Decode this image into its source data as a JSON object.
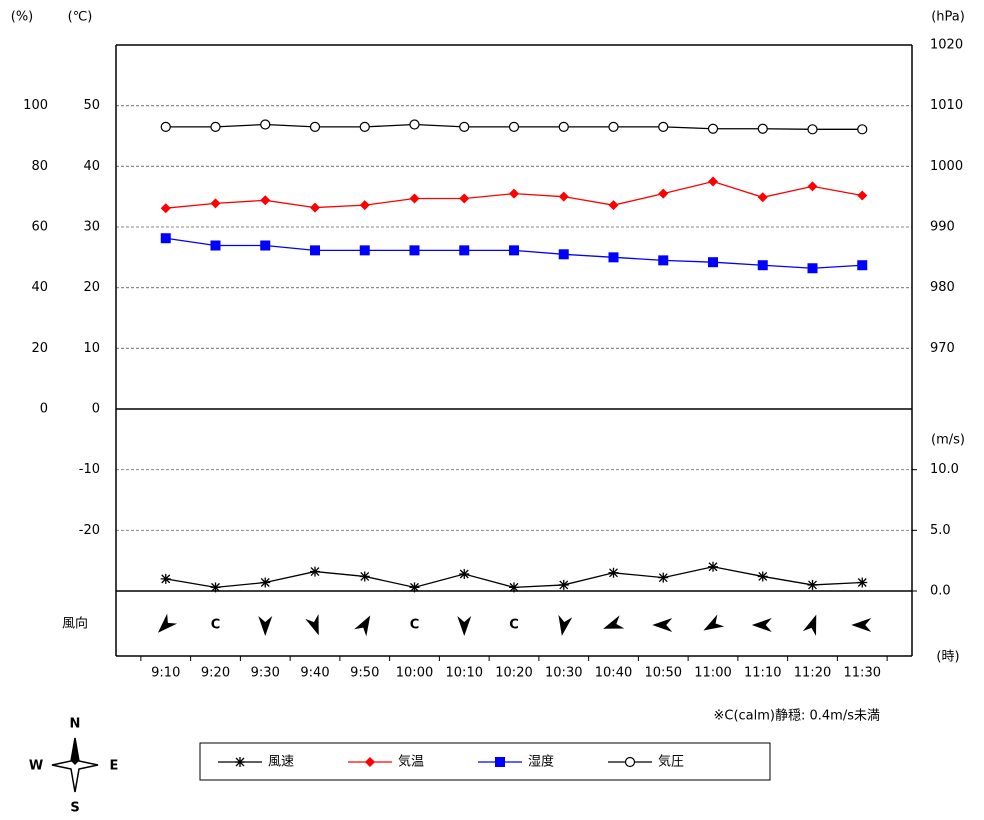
{
  "chart_data": {
    "type": "line",
    "categories": [
      "9:10",
      "9:20",
      "9:30",
      "9:40",
      "9:50",
      "10:00",
      "10:10",
      "10:20",
      "10:30",
      "10:40",
      "10:50",
      "11:00",
      "11:10",
      "11:20",
      "11:30"
    ],
    "x_label": "(時)",
    "y_label": "(℃)",
    "ylim": [
      -30,
      60
    ],
    "yticks": [
      -20,
      -10,
      0,
      10,
      20,
      30,
      40,
      50
    ],
    "grid": true,
    "y_pct_label": "(%)",
    "y_pct_lim": [
      -60,
      120
    ],
    "y_pct_ticks": [
      0,
      20,
      40,
      60,
      80,
      100
    ],
    "y2_label": "(hPa)",
    "y2lim": [
      930,
      1020
    ],
    "y2ticks": [
      970,
      980,
      990,
      1000,
      1010,
      1020
    ],
    "y3_label": "(m/s)",
    "y3lim": [
      0,
      15
    ],
    "y3ticks": [
      {
        "value": 0,
        "label": "0.0"
      },
      {
        "value": 5,
        "label": "5.0"
      },
      {
        "value": 10,
        "label": "10.0"
      }
    ],
    "series": [
      {
        "name": "風速",
        "color": "#000000",
        "marker": "asterisk",
        "axis": "y3",
        "values": [
          1.0,
          0.3,
          0.7,
          1.6,
          1.2,
          0.3,
          1.4,
          0.3,
          0.5,
          1.5,
          1.1,
          2.0,
          1.2,
          0.5,
          0.7
        ]
      },
      {
        "name": "気温",
        "color": "#ff0000",
        "marker": "diamond",
        "axis": "y",
        "values": [
          33.1,
          33.9,
          34.4,
          33.2,
          33.6,
          34.7,
          34.7,
          35.5,
          35.0,
          33.6,
          35.5,
          37.5,
          34.9,
          36.7,
          35.2
        ]
      },
      {
        "name": "湿度",
        "color": "#0000ff",
        "marker": "square",
        "axis": "y_pct",
        "values": [
          56.3,
          53.9,
          53.9,
          52.3,
          52.3,
          52.3,
          52.3,
          52.3,
          51.0,
          50.0,
          49.0,
          48.4,
          47.4,
          46.4,
          47.4
        ]
      },
      {
        "name": "気圧",
        "color": "#000000",
        "marker": "circle",
        "axis": "y2",
        "values": [
          1006.5,
          1006.5,
          1006.9,
          1006.5,
          1006.5,
          1006.9,
          1006.5,
          1006.5,
          1006.5,
          1006.5,
          1006.5,
          1006.2,
          1006.2,
          1006.1,
          1006.1
        ]
      }
    ],
    "wind_direction": {
      "label": "風向",
      "calm": [
        null,
        "C",
        null,
        null,
        null,
        "C",
        null,
        "C",
        null,
        null,
        null,
        null,
        null,
        null,
        null
      ],
      "degrees": [
        225,
        null,
        180,
        160,
        30,
        null,
        180,
        null,
        190,
        250,
        270,
        240,
        270,
        20,
        270
      ]
    },
    "note": "※C(calm)静穏: 0.4m/s未満",
    "compass": {
      "N": "N",
      "E": "E",
      "S": "S",
      "W": "W"
    }
  }
}
